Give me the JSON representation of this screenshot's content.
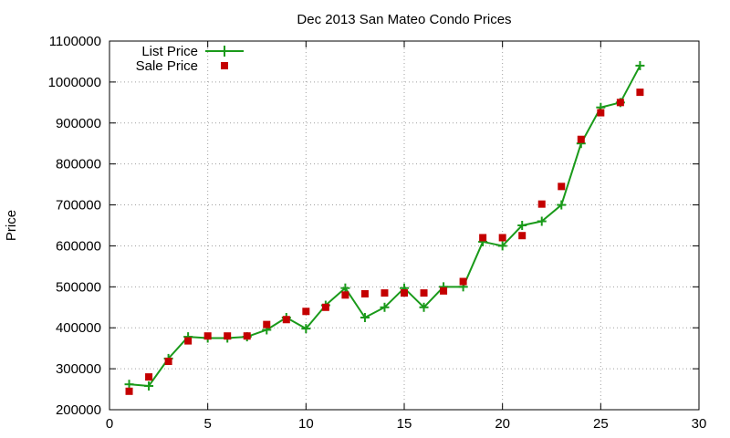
{
  "chart_data": {
    "type": "line",
    "title": "Dec 2013 San Mateo Condo Prices",
    "xlabel": "",
    "ylabel": "Price",
    "xlim": [
      0,
      30
    ],
    "ylim": [
      200000,
      1100000
    ],
    "xticks": [
      0,
      5,
      10,
      15,
      20,
      25,
      30
    ],
    "yticks": [
      200000,
      300000,
      400000,
      500000,
      600000,
      700000,
      800000,
      900000,
      1000000,
      1100000
    ],
    "grid": true,
    "legend_position": "top-left",
    "series": [
      {
        "name": "List Price",
        "style": "linespoints",
        "marker": "plus",
        "color": "#1a9a1a",
        "x": [
          1,
          2,
          3,
          4,
          5,
          6,
          7,
          8,
          9,
          10,
          11,
          12,
          13,
          14,
          15,
          16,
          17,
          18,
          19,
          20,
          21,
          22,
          23,
          24,
          25,
          26,
          27
        ],
        "y": [
          262000,
          258000,
          325000,
          378000,
          375000,
          375000,
          378000,
          395000,
          425000,
          398000,
          455000,
          497000,
          425000,
          450000,
          497000,
          450000,
          500000,
          500000,
          610000,
          600000,
          650000,
          660000,
          700000,
          850000,
          938000,
          950000,
          1040000
        ]
      },
      {
        "name": "Sale Price",
        "style": "points",
        "marker": "square",
        "color": "#c40000",
        "x": [
          1,
          2,
          3,
          4,
          5,
          6,
          7,
          8,
          9,
          10,
          11,
          12,
          13,
          14,
          15,
          16,
          17,
          18,
          19,
          20,
          21,
          22,
          23,
          24,
          25,
          26,
          27
        ],
        "y": [
          245000,
          280000,
          318000,
          368000,
          380000,
          380000,
          380000,
          408000,
          420000,
          440000,
          450000,
          480000,
          483000,
          485000,
          485000,
          485000,
          490000,
          513000,
          620000,
          620000,
          625000,
          702000,
          745000,
          860000,
          925000,
          950000,
          975000
        ]
      }
    ]
  }
}
